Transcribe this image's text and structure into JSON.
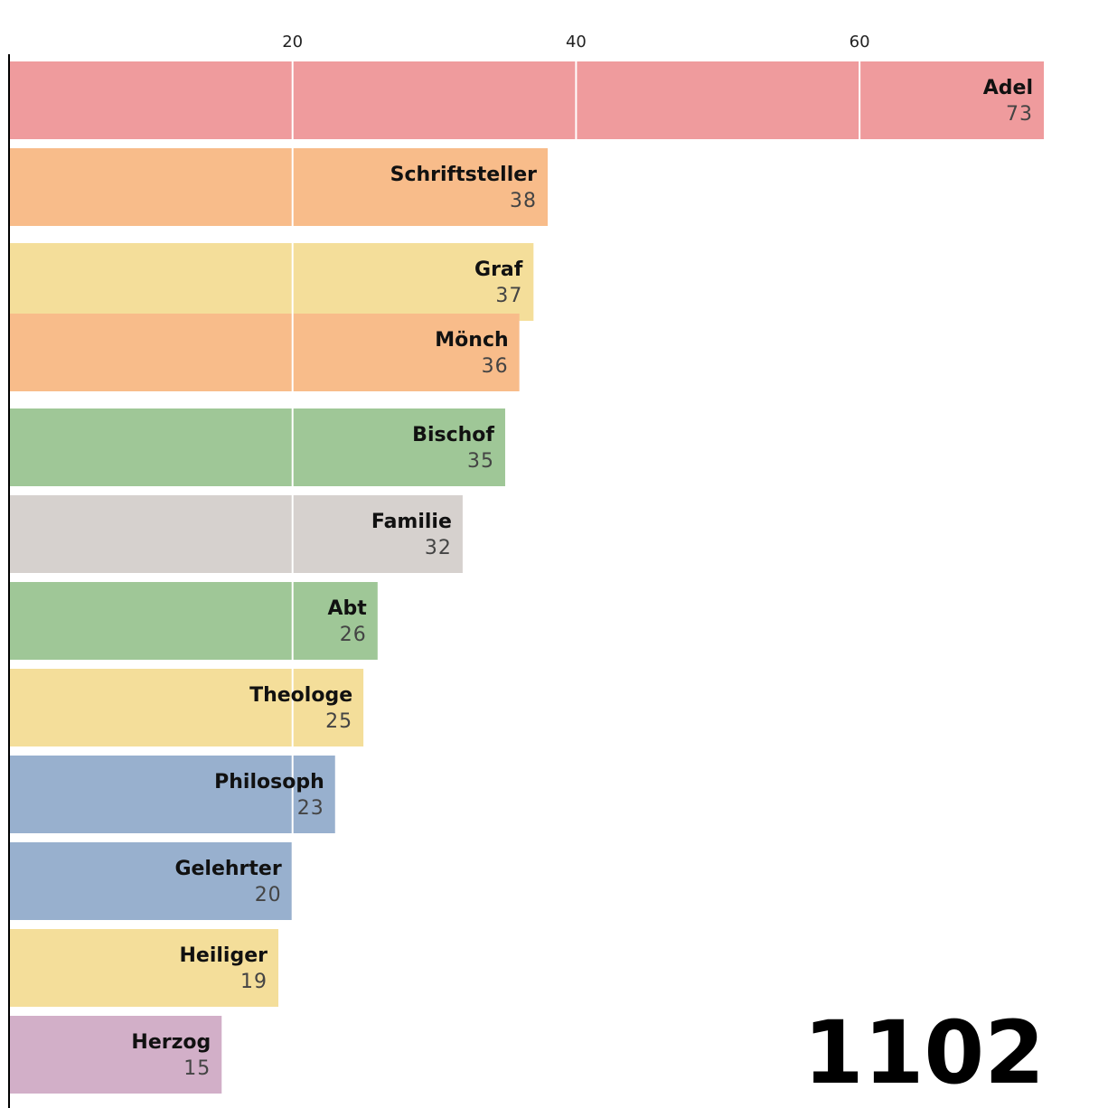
{
  "chart_data": {
    "type": "bar",
    "orientation": "horizontal",
    "year": "1102",
    "xlim": [
      0,
      73
    ],
    "x_ticks": [
      20,
      40,
      60
    ],
    "grid": true,
    "categories": [
      "Adel",
      "Schriftsteller",
      "Graf",
      "Mönch",
      "Bischof",
      "Familie",
      "Abt",
      "Theologe",
      "Philosoph",
      "Gelehrter",
      "Heiliger",
      "Herzog"
    ],
    "values": [
      73,
      38,
      37,
      36,
      35,
      32,
      26,
      25,
      23,
      20,
      19,
      15
    ],
    "colors": [
      "#ef9b9d",
      "#f8bc8a",
      "#f4de9a",
      "#f8bc8a",
      "#9fc797",
      "#d6d1ce",
      "#9fc797",
      "#f4de9a",
      "#98b0ce",
      "#98b0ce",
      "#f4de9a",
      "#d2afc8"
    ]
  }
}
